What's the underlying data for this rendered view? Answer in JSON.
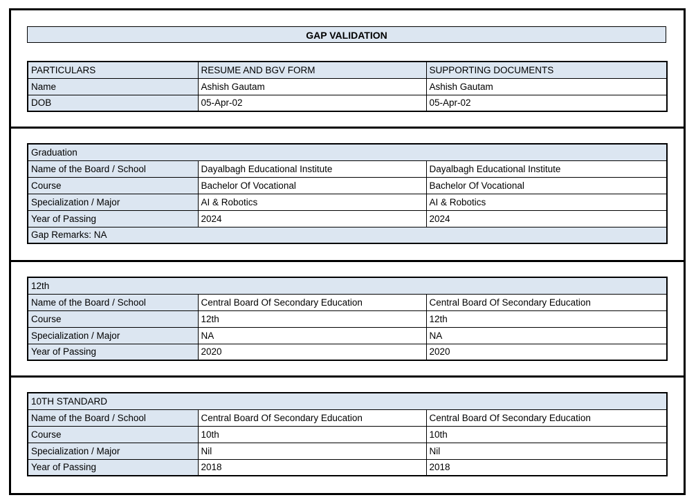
{
  "title": "GAP VALIDATION",
  "colors": {
    "accent_fill": "#dce6f1",
    "border": "#000000"
  },
  "personal": {
    "headers": {
      "particulars": "PARTICULARS",
      "resume": "RESUME AND BGV FORM",
      "supporting": "SUPPORTING DOCUMENTS"
    },
    "rows": [
      {
        "label": "Name",
        "resume": "Ashish Gautam",
        "supporting": "Ashish Gautam"
      },
      {
        "label": "DOB",
        "resume": "05-Apr-02",
        "supporting": "05-Apr-02"
      }
    ]
  },
  "sections": [
    {
      "heading": "Graduation",
      "rows": [
        {
          "label": "Name of the Board / School",
          "resume": "Dayalbagh Educational Institute",
          "supporting": "Dayalbagh Educational Institute"
        },
        {
          "label": "Course",
          "resume": "Bachelor Of Vocational",
          "supporting": "Bachelor Of Vocational"
        },
        {
          "label": "Specialization / Major",
          "resume": "AI & Robotics",
          "supporting": "AI & Robotics"
        },
        {
          "label": "Year of Passing",
          "resume": "2024",
          "supporting": "2024"
        }
      ],
      "footer": "Gap Remarks: NA"
    },
    {
      "heading": "12th",
      "rows": [
        {
          "label": "Name of the Board / School",
          "resume": "Central Board Of Secondary Education",
          "supporting": "Central Board Of Secondary Education"
        },
        {
          "label": "Course",
          "resume": "12th",
          "supporting": "12th"
        },
        {
          "label": "Specialization / Major",
          "resume": "NA",
          "supporting": "NA"
        },
        {
          "label": "Year of Passing",
          "resume": "2020",
          "supporting": "2020"
        }
      ]
    },
    {
      "heading": "10TH STANDARD",
      "rows": [
        {
          "label": "Name of the Board / School",
          "resume": "Central Board Of Secondary Education",
          "supporting": "Central Board Of Secondary Education"
        },
        {
          "label": "Course",
          "resume": "10th",
          "supporting": "10th"
        },
        {
          "label": "Specialization / Major",
          "resume": "Nil",
          "supporting": "Nil"
        },
        {
          "label": "Year of Passing",
          "resume": "2018",
          "supporting": "2018"
        }
      ]
    }
  ]
}
